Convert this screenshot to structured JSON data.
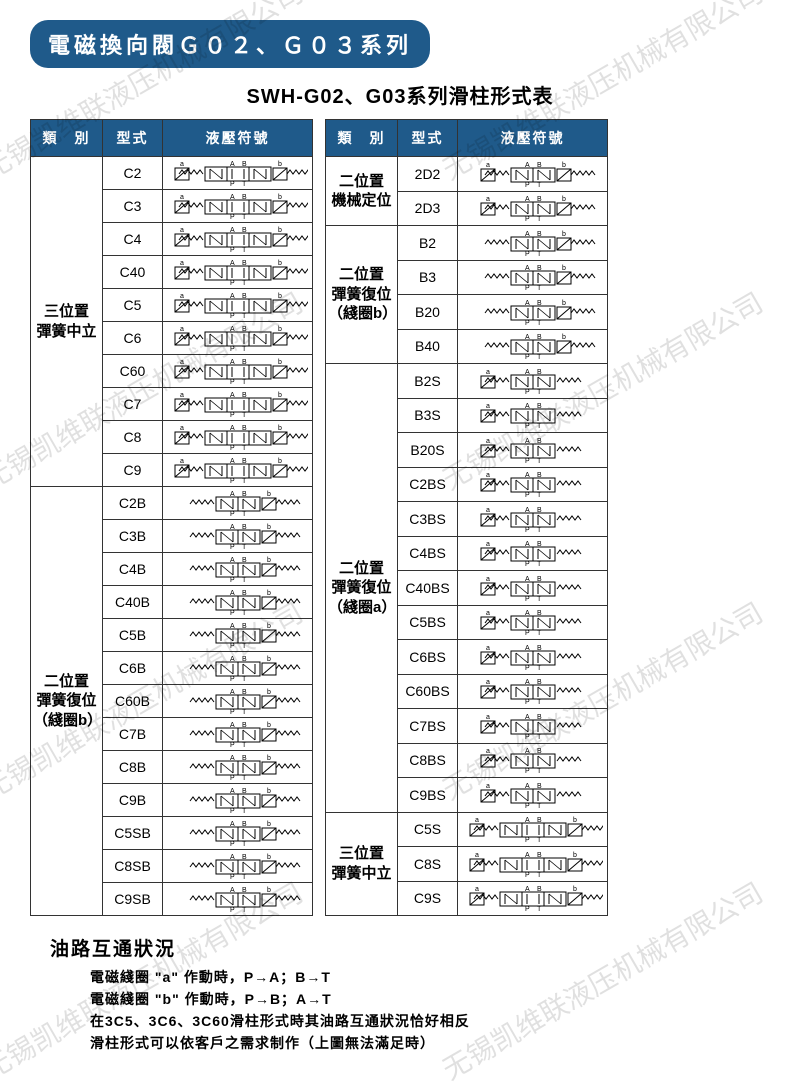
{
  "watermark_text": "无锡凯维联液压机械有限公司",
  "title": "電磁換向閥Ｇ０２、Ｇ０３系列",
  "subtitle": "SWH-G02、G03系列滑柱形式表",
  "colors": {
    "header_bg": "#1f5a8a",
    "header_fg": "#ffffff",
    "border": "#333333",
    "watermark": "rgba(0,0,0,0.12)"
  },
  "headers": {
    "category": "類　別",
    "type": "型式",
    "symbol": "液壓符號"
  },
  "left_table": [
    {
      "category": "三位置\n彈簧中立",
      "rows": [
        {
          "type": "C2"
        },
        {
          "type": "C3"
        },
        {
          "type": "C4"
        },
        {
          "type": "C40"
        },
        {
          "type": "C5"
        },
        {
          "type": "C6"
        },
        {
          "type": "C60"
        },
        {
          "type": "C7"
        },
        {
          "type": "C8"
        },
        {
          "type": "C9"
        }
      ]
    },
    {
      "category": "二位置\n彈簧復位\n（綫圈b）",
      "rows": [
        {
          "type": "C2B"
        },
        {
          "type": "C3B"
        },
        {
          "type": "C4B"
        },
        {
          "type": "C40B"
        },
        {
          "type": "C5B"
        },
        {
          "type": "C6B"
        },
        {
          "type": "C60B"
        },
        {
          "type": "C7B"
        },
        {
          "type": "C8B"
        },
        {
          "type": "C9B"
        },
        {
          "type": "C5SB"
        },
        {
          "type": "C8SB"
        },
        {
          "type": "C9SB"
        }
      ]
    }
  ],
  "right_table": [
    {
      "category": "二位置\n機械定位",
      "rows": [
        {
          "type": "2D2"
        },
        {
          "type": "2D3"
        }
      ]
    },
    {
      "category": "二位置\n彈簧復位\n（綫圈b）",
      "rows": [
        {
          "type": "B2"
        },
        {
          "type": "B3"
        },
        {
          "type": "B20"
        },
        {
          "type": "B40"
        }
      ]
    },
    {
      "category": "二位置\n彈簧復位\n（綫圈a）",
      "rows": [
        {
          "type": "B2S"
        },
        {
          "type": "B3S"
        },
        {
          "type": "B20S"
        },
        {
          "type": "C2BS"
        },
        {
          "type": "C3BS"
        },
        {
          "type": "C4BS"
        },
        {
          "type": "C40BS"
        },
        {
          "type": "C5BS"
        },
        {
          "type": "C6BS"
        },
        {
          "type": "C60BS"
        },
        {
          "type": "C7BS"
        },
        {
          "type": "C8BS"
        },
        {
          "type": "C9BS"
        }
      ]
    },
    {
      "category": "三位置\n彈簧中立",
      "rows": [
        {
          "type": "C5S"
        },
        {
          "type": "C8S"
        },
        {
          "type": "C9S"
        }
      ]
    }
  ],
  "notes": {
    "title": "油路互通狀況",
    "lines": [
      "電磁綫圈 \"a\" 作動時，P→A；B→T",
      "電磁綫圈 \"b\" 作動時，P→B；A→T",
      "在3C5、3C6、3C60滑柱形式時其油路互通狀況恰好相反",
      "滑柱形式可以依客戶之需求制作（上圖無法滿足時）"
    ]
  }
}
